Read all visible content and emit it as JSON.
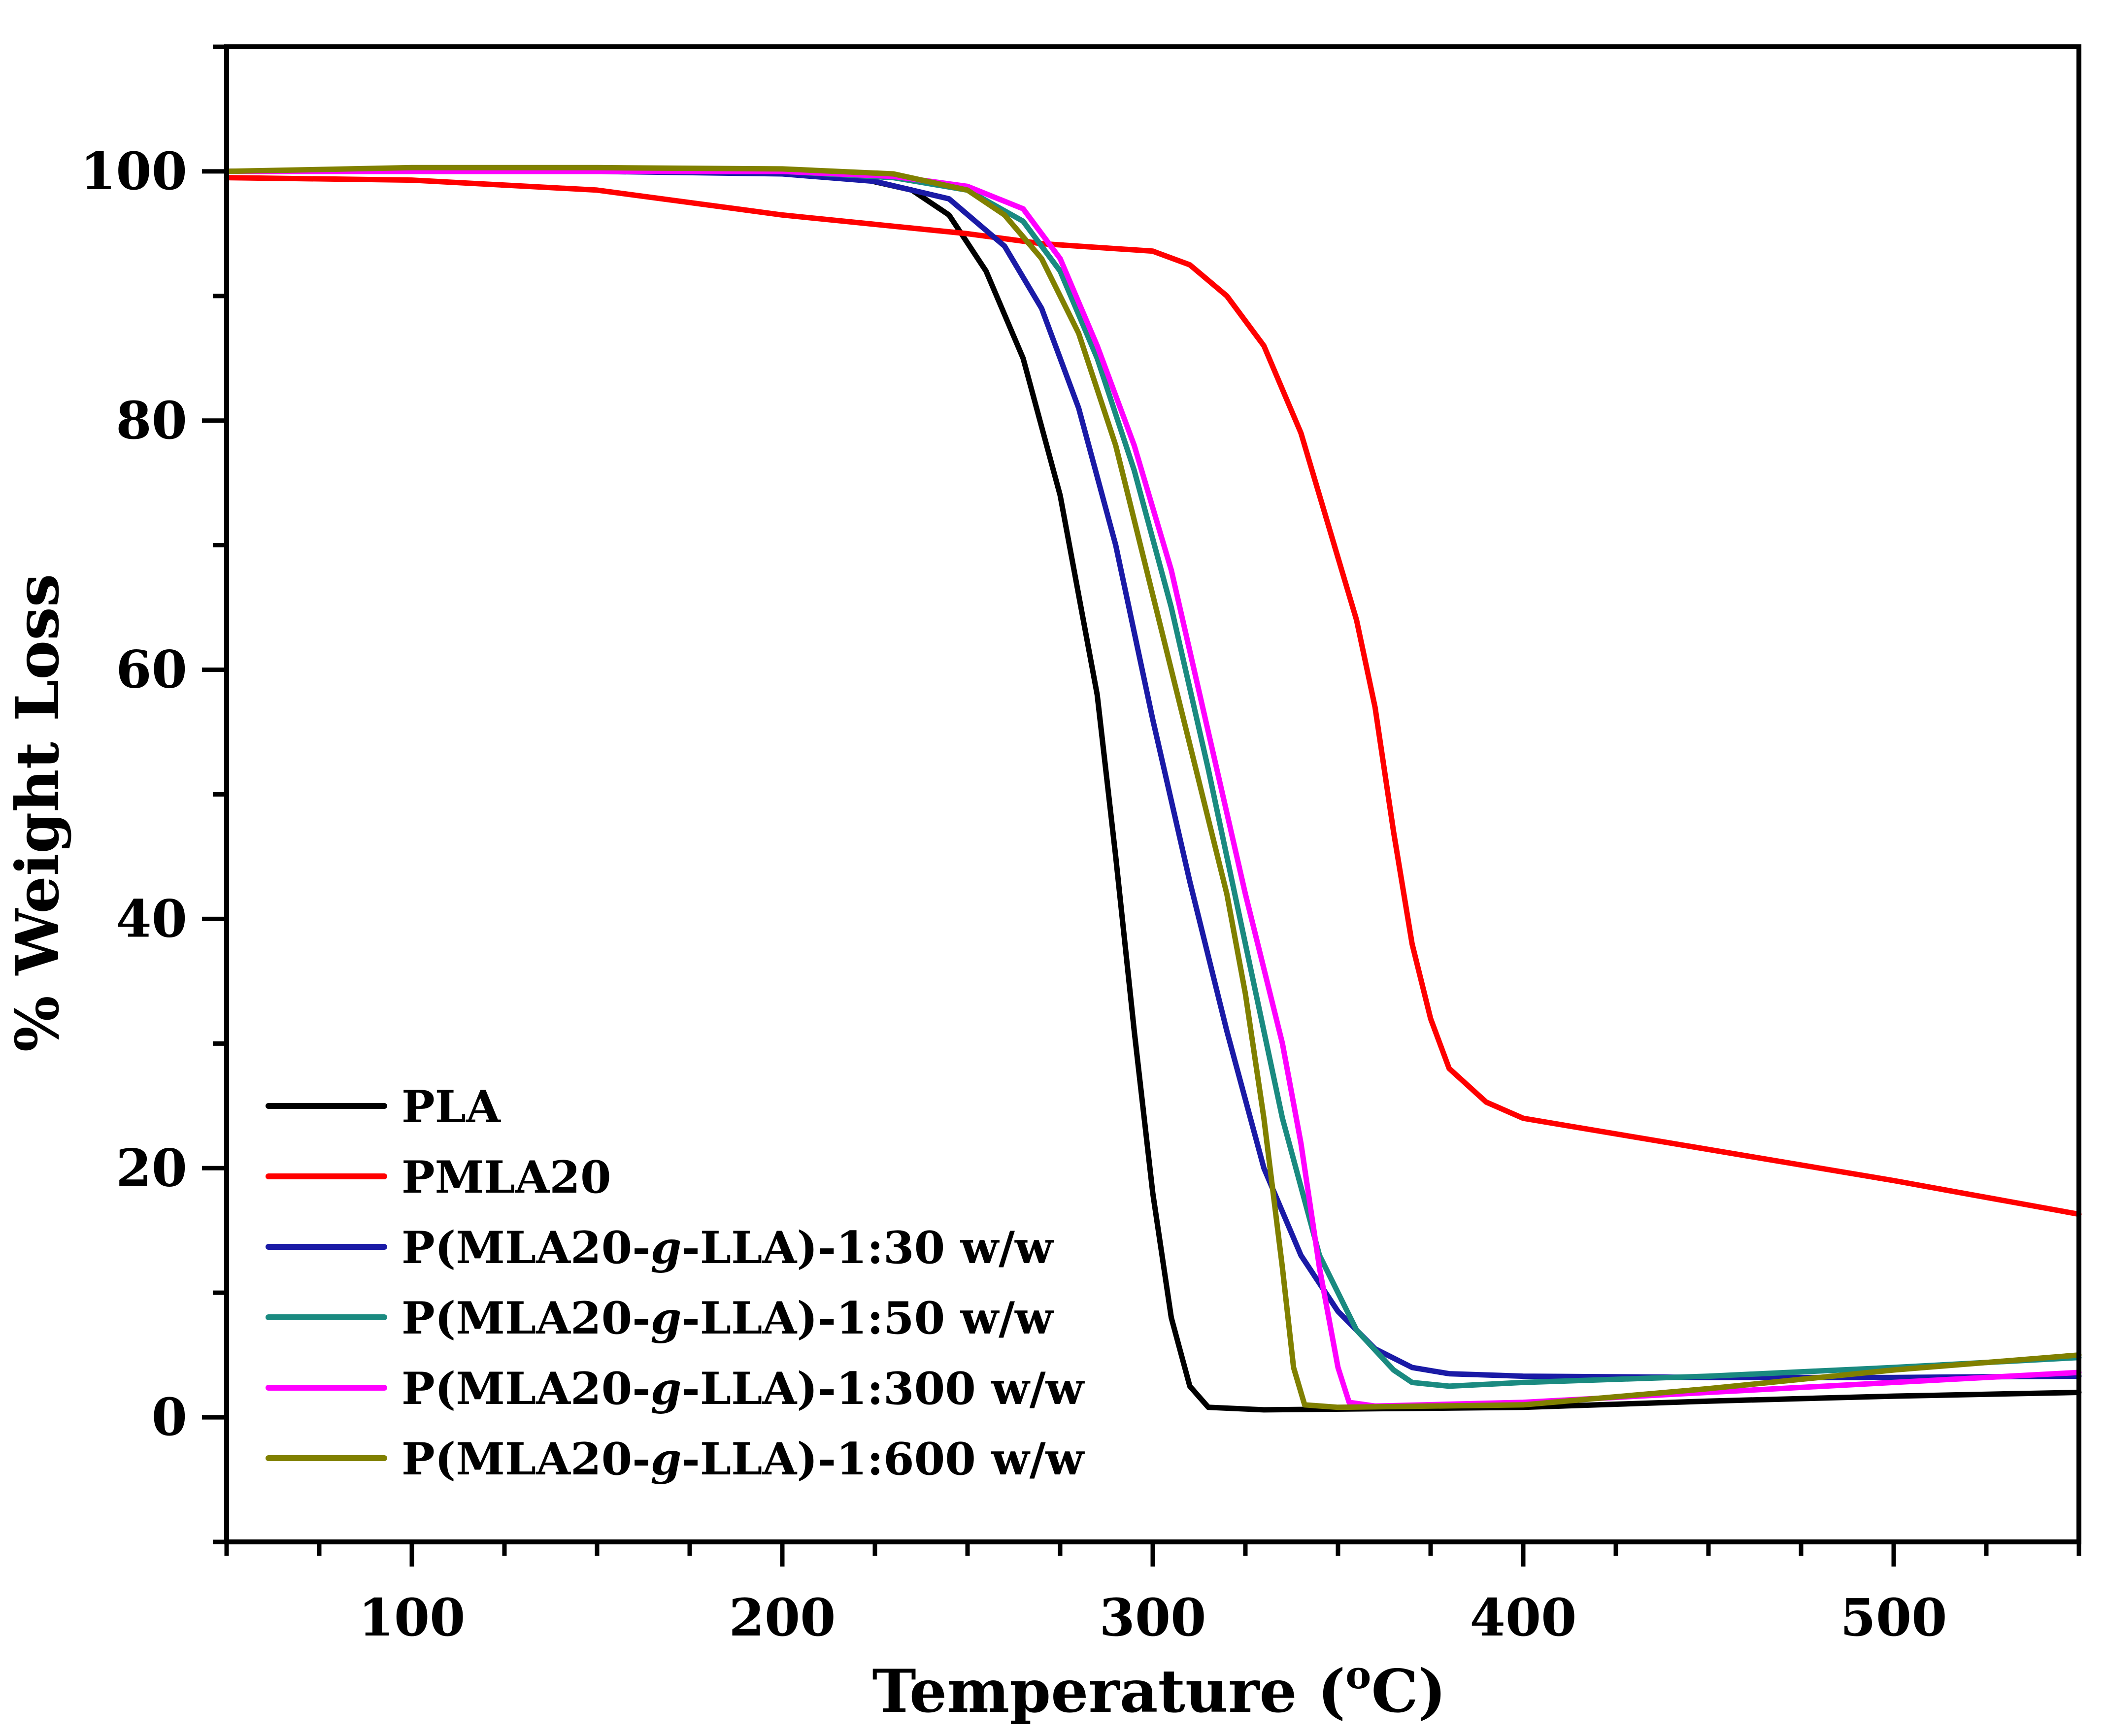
{
  "chart_data": {
    "type": "line",
    "title": "",
    "xlabel": "Temperature",
    "xlabel_unit_sup": "o",
    "xlabel_unit": "C",
    "ylabel": "% Weight Loss",
    "xlim": [
      50,
      550
    ],
    "ylim": [
      -10,
      110
    ],
    "x_ticks": [
      100,
      200,
      300,
      400,
      500
    ],
    "y_ticks": [
      0,
      20,
      40,
      60,
      80,
      100
    ],
    "x_tick_labels": [
      "100",
      "200",
      "300",
      "400",
      "500"
    ],
    "y_tick_labels": [
      "0",
      "20",
      "40",
      "60",
      "80",
      "100"
    ],
    "legend_position": "bottom-left",
    "series": [
      {
        "name": "PLA",
        "label_parts": [
          "PLA"
        ],
        "color": "#000000",
        "points": [
          [
            50,
            100
          ],
          [
            100,
            100
          ],
          [
            150,
            100
          ],
          [
            200,
            99.9
          ],
          [
            220,
            99.5
          ],
          [
            235,
            98.5
          ],
          [
            245,
            96.5
          ],
          [
            255,
            92
          ],
          [
            265,
            85
          ],
          [
            275,
            74
          ],
          [
            285,
            58
          ],
          [
            290,
            45
          ],
          [
            295,
            31
          ],
          [
            300,
            18
          ],
          [
            305,
            8
          ],
          [
            310,
            2.5
          ],
          [
            315,
            0.8
          ],
          [
            330,
            0.6
          ],
          [
            400,
            0.8
          ],
          [
            450,
            1.3
          ],
          [
            500,
            1.7
          ],
          [
            550,
            2.0
          ]
        ]
      },
      {
        "name": "PMLA20",
        "label_parts": [
          "PMLA20"
        ],
        "color": "#ff0000",
        "points": [
          [
            50,
            99.5
          ],
          [
            100,
            99.3
          ],
          [
            150,
            98.5
          ],
          [
            200,
            96.5
          ],
          [
            250,
            95
          ],
          [
            270,
            94.2
          ],
          [
            300,
            93.6
          ],
          [
            310,
            92.5
          ],
          [
            320,
            90
          ],
          [
            330,
            86
          ],
          [
            340,
            79
          ],
          [
            350,
            69
          ],
          [
            355,
            64
          ],
          [
            360,
            57
          ],
          [
            365,
            47
          ],
          [
            370,
            38
          ],
          [
            375,
            32
          ],
          [
            380,
            28
          ],
          [
            390,
            25.3
          ],
          [
            400,
            24
          ],
          [
            450,
            21.5
          ],
          [
            500,
            19
          ],
          [
            550,
            16.3
          ]
        ]
      },
      {
        "name": "P(MLA20-g-LLA)-1:30 w/w",
        "label_parts": [
          "P(MLA20-",
          "g",
          "-LLA)-1:30 w/w"
        ],
        "color": "#1a1aa6",
        "points": [
          [
            50,
            100
          ],
          [
            150,
            100
          ],
          [
            200,
            99.8
          ],
          [
            225,
            99.2
          ],
          [
            245,
            97.8
          ],
          [
            260,
            94
          ],
          [
            270,
            89
          ],
          [
            280,
            81
          ],
          [
            290,
            70
          ],
          [
            300,
            56
          ],
          [
            310,
            43
          ],
          [
            320,
            31
          ],
          [
            330,
            20
          ],
          [
            340,
            13
          ],
          [
            350,
            8.5
          ],
          [
            360,
            5.5
          ],
          [
            370,
            4
          ],
          [
            380,
            3.5
          ],
          [
            400,
            3.3
          ],
          [
            450,
            3.2
          ],
          [
            500,
            3.2
          ],
          [
            550,
            3.3
          ]
        ]
      },
      {
        "name": "P(MLA20-g-LLA)-1:50 w/w",
        "label_parts": [
          "P(MLA20-",
          "g",
          "-LLA)-1:50 w/w"
        ],
        "color": "#1a8a80",
        "points": [
          [
            50,
            100
          ],
          [
            150,
            100
          ],
          [
            200,
            100
          ],
          [
            230,
            99.5
          ],
          [
            250,
            98.5
          ],
          [
            265,
            96
          ],
          [
            275,
            92
          ],
          [
            285,
            85
          ],
          [
            295,
            76
          ],
          [
            305,
            65
          ],
          [
            315,
            52
          ],
          [
            325,
            38
          ],
          [
            335,
            24
          ],
          [
            345,
            13
          ],
          [
            355,
            7
          ],
          [
            365,
            3.8
          ],
          [
            370,
            2.8
          ],
          [
            380,
            2.5
          ],
          [
            400,
            2.8
          ],
          [
            450,
            3.3
          ],
          [
            500,
            4
          ],
          [
            550,
            4.8
          ]
        ]
      },
      {
        "name": "P(MLA20-g-LLA)-1:300 w/w",
        "label_parts": [
          "P(MLA20-",
          "g",
          "-LLA)-1:300 w/w"
        ],
        "color": "#ff00ff",
        "points": [
          [
            50,
            100
          ],
          [
            150,
            100
          ],
          [
            200,
            100
          ],
          [
            230,
            99.6
          ],
          [
            250,
            98.8
          ],
          [
            265,
            97
          ],
          [
            275,
            93
          ],
          [
            285,
            86
          ],
          [
            295,
            78
          ],
          [
            305,
            68
          ],
          [
            315,
            55
          ],
          [
            325,
            42
          ],
          [
            335,
            30
          ],
          [
            340,
            22
          ],
          [
            345,
            12
          ],
          [
            350,
            4
          ],
          [
            353,
            1.2
          ],
          [
            360,
            0.9
          ],
          [
            400,
            1.2
          ],
          [
            450,
            2
          ],
          [
            500,
            2.8
          ],
          [
            550,
            3.6
          ]
        ]
      },
      {
        "name": "P(MLA20-g-LLA)-1:600 w/w",
        "label_parts": [
          "P(MLA20-",
          "g",
          "-LLA)-1:600 w/w"
        ],
        "color": "#808000",
        "points": [
          [
            50,
            100
          ],
          [
            100,
            100.3
          ],
          [
            150,
            100.3
          ],
          [
            200,
            100.2
          ],
          [
            230,
            99.8
          ],
          [
            250,
            98.5
          ],
          [
            260,
            96.5
          ],
          [
            270,
            93
          ],
          [
            280,
            87
          ],
          [
            290,
            78
          ],
          [
            300,
            66
          ],
          [
            310,
            54
          ],
          [
            320,
            42
          ],
          [
            325,
            34
          ],
          [
            330,
            24
          ],
          [
            335,
            12
          ],
          [
            338,
            4
          ],
          [
            341,
            1
          ],
          [
            350,
            0.8
          ],
          [
            400,
            1
          ],
          [
            450,
            2.3
          ],
          [
            500,
            3.8
          ],
          [
            550,
            5.0
          ]
        ]
      }
    ]
  }
}
